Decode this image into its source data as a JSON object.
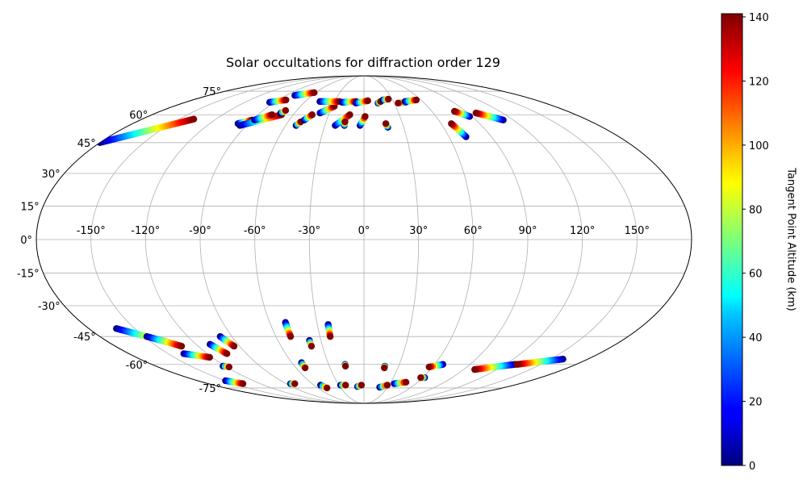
{
  "chart_data": {
    "type": "scatter",
    "projection": "mollweide",
    "title": "Solar occultations for diffraction order 129",
    "xlabel": "",
    "ylabel": "",
    "longitude_ticks": [
      -150,
      -120,
      -90,
      -60,
      -30,
      0,
      30,
      60,
      90,
      120,
      150
    ],
    "longitude_tick_labels": [
      "-150°",
      "-120°",
      "-90°",
      "-60°",
      "-30°",
      "0°",
      "30°",
      "60°",
      "90°",
      "120°",
      "150°"
    ],
    "latitude_ticks": [
      -75,
      -60,
      -45,
      -30,
      -15,
      0,
      15,
      30,
      45,
      60,
      75
    ],
    "latitude_tick_labels": [
      "-75°",
      "-60°",
      "-45°",
      "-30°",
      "-15°",
      "0°",
      "15°",
      "30°",
      "45°",
      "60°",
      "75°"
    ],
    "grid": true,
    "colorbar": {
      "label": "Tangent Point Altitude (km)",
      "range": [
        0,
        141
      ],
      "ticks": [
        0,
        20,
        40,
        60,
        80,
        100,
        120,
        140
      ],
      "tick_labels": [
        "0",
        "20",
        "40",
        "60",
        "80",
        "100",
        "120",
        "140"
      ],
      "colormap": "jet"
    },
    "tracks": [
      {
        "lon1": -180,
        "lat1": 45,
        "lon2": -138,
        "lat2": 57.5
      },
      {
        "lon1": -98,
        "lat1": 55,
        "lon2": -90,
        "lat2": 57
      },
      {
        "lon1": -95,
        "lat1": 54,
        "lon2": -70,
        "lat2": 60
      },
      {
        "lon1": -88,
        "lat1": 57,
        "lon2": -78,
        "lat2": 60
      },
      {
        "lon1": -95,
        "lat1": 67.5,
        "lon2": -82,
        "lat2": 69
      },
      {
        "lon1": -72,
        "lat1": 61,
        "lon2": -70,
        "lat2": 62.5
      },
      {
        "lon1": -80,
        "lat1": 72,
        "lon2": -62,
        "lat2": 74
      },
      {
        "lon1": -52,
        "lat1": 54,
        "lon2": -50,
        "lat2": 56
      },
      {
        "lon1": -48,
        "lat1": 57,
        "lon2": -44,
        "lat2": 60
      },
      {
        "lon1": -38,
        "lat1": 61,
        "lon2": -28,
        "lat2": 65
      },
      {
        "lon1": -22,
        "lat1": 54,
        "lon2": -12,
        "lat2": 60
      },
      {
        "lon1": -15,
        "lat1": 54,
        "lon2": -15,
        "lat2": 56
      },
      {
        "lon1": -3,
        "lat1": 54,
        "lon2": 1,
        "lat2": 59
      },
      {
        "lon1": -45,
        "lat1": 68,
        "lon2": -25,
        "lat2": 68
      },
      {
        "lon1": -22,
        "lat1": 67.5,
        "lon2": -8,
        "lat2": 68
      },
      {
        "lon1": -8,
        "lat1": 67,
        "lon2": 4,
        "lat2": 68.5
      },
      {
        "lon1": 14,
        "lat1": 67,
        "lon2": 17,
        "lat2": 68
      },
      {
        "lon1": 18,
        "lat1": 53,
        "lon2": 17,
        "lat2": 55
      },
      {
        "lon1": 20,
        "lat1": 69,
        "lon2": 26,
        "lat2": 69.5
      },
      {
        "lon1": 42,
        "lat1": 67.5,
        "lon2": 34,
        "lat2": 67
      },
      {
        "lon1": 42,
        "lat1": 68,
        "lon2": 55,
        "lat2": 69
      },
      {
        "lon1": 88,
        "lat1": 59,
        "lon2": 80,
        "lat2": 62
      },
      {
        "lon1": 112,
        "lat1": 57,
        "lon2": 97,
        "lat2": 61
      },
      {
        "lon1": 72,
        "lat1": 48,
        "lon2": 68,
        "lat2": 55
      },
      {
        "lon1": -162,
        "lat1": -41,
        "lon2": -138,
        "lat2": -48
      },
      {
        "lon1": -148,
        "lat1": -45,
        "lon2": -132,
        "lat2": -50
      },
      {
        "lon1": -138,
        "lat1": -54,
        "lon2": -122,
        "lat2": -56
      },
      {
        "lon1": -110,
        "lat1": -49,
        "lon2": -105,
        "lat2": -54
      },
      {
        "lon1": -98,
        "lat1": -45,
        "lon2": -94,
        "lat2": -50
      },
      {
        "lon1": -50,
        "lat1": -38,
        "lon2": -50,
        "lat2": -45
      },
      {
        "lon1": -38,
        "lat1": -47,
        "lon2": -38,
        "lat2": -50
      },
      {
        "lon1": -23,
        "lat1": -39,
        "lon2": -23,
        "lat2": -45
      },
      {
        "lon1": -122,
        "lat1": -61,
        "lon2": -118,
        "lat2": -61.5
      },
      {
        "lon1": -52,
        "lat1": -59,
        "lon2": -52,
        "lat2": -62
      },
      {
        "lon1": -16,
        "lat1": -60,
        "lon2": -16,
        "lat2": -61
      },
      {
        "lon1": 18,
        "lat1": -61,
        "lon2": 18,
        "lat2": -62
      },
      {
        "lon1": 67,
        "lat1": -60,
        "lon2": 57,
        "lat2": -61.5
      },
      {
        "lon1": 128,
        "lat1": -60,
        "lon2": 100,
        "lat2": -63
      },
      {
        "lon1": 160,
        "lat1": -57,
        "lon2": 130,
        "lat2": -60
      },
      {
        "lon1": -150,
        "lat1": -70,
        "lon2": -140,
        "lat2": -72
      },
      {
        "lon1": -85,
        "lat1": -72,
        "lon2": -80,
        "lat2": -72
      },
      {
        "lon1": -52,
        "lat1": -73,
        "lon2": -48,
        "lat2": -75
      },
      {
        "lon1": -28,
        "lat1": -73,
        "lon2": -22,
        "lat2": -73
      },
      {
        "lon1": -8,
        "lat1": -74,
        "lon2": -3,
        "lat2": -73
      },
      {
        "lon1": 20,
        "lat1": -74.5,
        "lon2": 28,
        "lat2": -73
      },
      {
        "lon1": 35,
        "lat1": -72,
        "lon2": 47,
        "lat2": -71
      },
      {
        "lon1": 62,
        "lat1": -68,
        "lon2": 58,
        "lat2": -68
      }
    ]
  }
}
